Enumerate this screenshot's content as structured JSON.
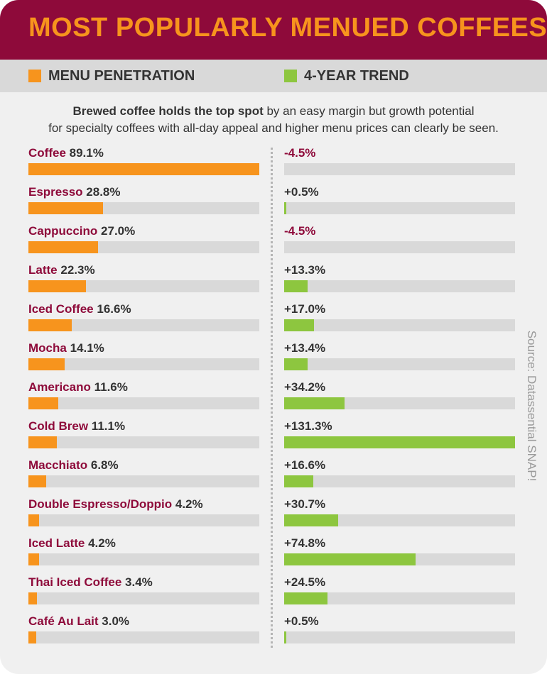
{
  "title": "MOST POPULARLY MENUED COFFEES",
  "legend": {
    "penetration": "MENU PENETRATION",
    "trend": "4-YEAR TREND"
  },
  "subtitle": {
    "bold": "Brewed coffee holds the top spot",
    "line1_rest": " by an easy margin but growth potential",
    "line2": "for specialty coffees with all-day appeal and higher menu prices can clearly be seen."
  },
  "source": "Source: Datassential SNAP!",
  "colors": {
    "header": "#8e0a3a",
    "orange": "#f7941d",
    "green": "#8dc63f",
    "track": "#d9d9d9",
    "negative": "#8e0a3a",
    "positive": "#333333"
  },
  "chart_data": {
    "type": "bar",
    "categories": [
      "Coffee",
      "Espresso",
      "Cappuccino",
      "Latte",
      "Iced Coffee",
      "Mocha",
      "Americano",
      "Cold Brew",
      "Macchiato",
      "Double Espresso/Doppio",
      "Iced Latte",
      "Thai Iced Coffee",
      "Café Au Lait"
    ],
    "series": [
      {
        "name": "MENU PENETRATION",
        "values": [
          89.1,
          28.8,
          27.0,
          22.3,
          16.6,
          14.1,
          11.6,
          11.1,
          6.8,
          4.2,
          4.2,
          3.4,
          3.0
        ],
        "labels": [
          "89.1%",
          "28.8%",
          "27.0%",
          "22.3%",
          "16.6%",
          "14.1%",
          "11.6%",
          "11.1%",
          "6.8%",
          "4.2%",
          "4.2%",
          "3.4%",
          "3.0%"
        ]
      },
      {
        "name": "4-YEAR TREND",
        "values": [
          -4.5,
          0.5,
          -4.5,
          13.3,
          17.0,
          13.4,
          34.2,
          131.3,
          16.6,
          30.7,
          74.8,
          24.5,
          0.5
        ],
        "labels": [
          "-4.5%",
          "+0.5%",
          "-4.5%",
          "+13.3%",
          "+17.0%",
          "+13.4%",
          "+34.2%",
          "+131.3%",
          "+16.6%",
          "+30.7%",
          "+74.8%",
          "+24.5%",
          "+0.5%"
        ]
      }
    ],
    "xlim_penetration": [
      0,
      89.1
    ],
    "xlim_trend": [
      0,
      131.3
    ],
    "grid": false
  }
}
